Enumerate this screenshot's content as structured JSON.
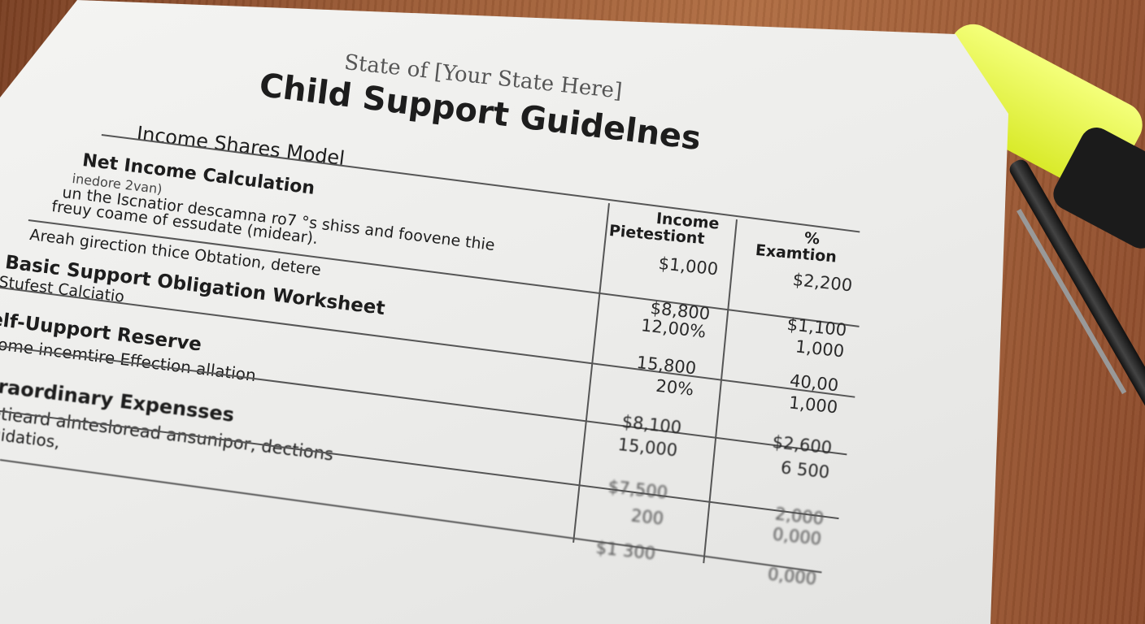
{
  "document": {
    "state_line": "State of [Your State Here]",
    "title": "Child Support Guidelnes",
    "model": "Income Shares Model",
    "sections": [
      {
        "heading": "Net Income Calculation",
        "body": [
          "inedore 2van)",
          "un the Iscnatior descamna ro7 °s shiss and foovene thie",
          "freuy coame of essudate (midear).",
          "Areah girection thice Obtation, detere"
        ]
      },
      {
        "heading": "Basic Support Obligation Worksheet",
        "body": [
          "Stufest Calciatio"
        ]
      },
      {
        "heading": "elf-Uupport Reserve",
        "body": [
          "come incemtire Effection allation"
        ]
      },
      {
        "heading": "traordinary Expensses",
        "body": [
          "etieard alntesloread ansunipor, dections",
          "uidatios,"
        ]
      }
    ],
    "table": {
      "headers": [
        "Income Pietestiont",
        "% Examtion"
      ],
      "header_line1": [
        "Income",
        "%"
      ],
      "header_line2": [
        "Pietestiont",
        "Examtion"
      ],
      "col1": [
        "$1,000",
        "$8,800",
        "12,00%",
        "15,800",
        "20%",
        "$8,100",
        "15,000",
        "$7,500",
        "200",
        "$1 300"
      ],
      "col2": [
        "$2,200",
        "$1,100",
        "1,000",
        "40,00",
        "1,000",
        "$2,600",
        "6 500",
        "2,000",
        "0,000",
        "0,000"
      ]
    }
  },
  "colors": {
    "highlighter": "#e8f542",
    "desk": "#9a5a35",
    "paper": "#eeeeec"
  }
}
